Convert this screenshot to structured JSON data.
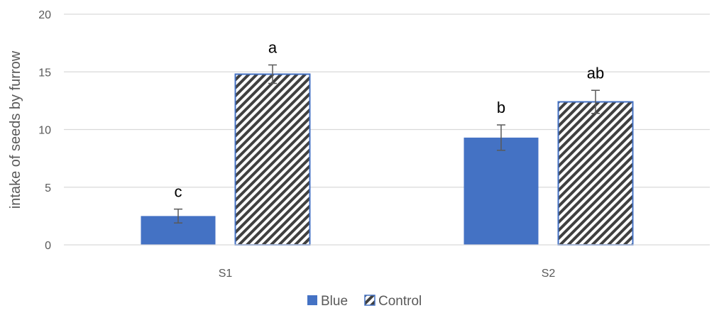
{
  "chart_data": {
    "type": "bar",
    "categories": [
      "S1",
      "S2"
    ],
    "series": [
      {
        "name": "Blue",
        "values": [
          2.5,
          9.3
        ],
        "errors": [
          0.6,
          1.1
        ],
        "labels": [
          "c",
          "b"
        ],
        "color": "#4472C4",
        "pattern": "solid"
      },
      {
        "name": "Control",
        "values": [
          14.8,
          12.4
        ],
        "errors": [
          0.8,
          1.0
        ],
        "labels": [
          "a",
          "ab"
        ],
        "color": "#404040",
        "pattern": "diagonal-hatch",
        "border": "#4472C4"
      }
    ],
    "ylabel": "intake of seeds by furrow",
    "xlabel": "",
    "ylim": [
      0,
      20
    ],
    "yticks": [
      0,
      5,
      10,
      15,
      20
    ],
    "grid": true,
    "legend": "bottom"
  }
}
